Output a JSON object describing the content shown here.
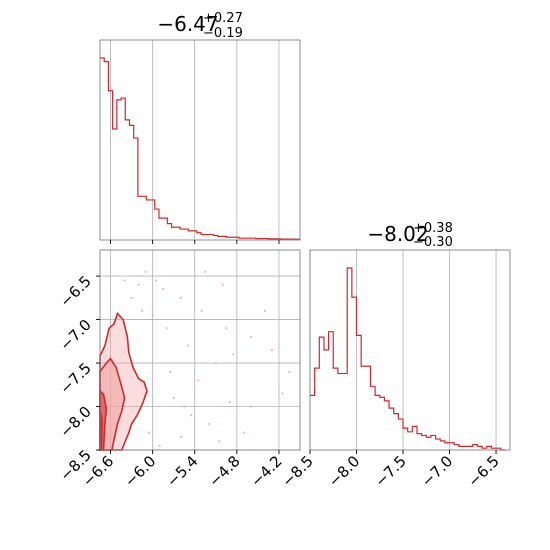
{
  "colors": {
    "line": "#d62728",
    "fill_dark": "#d62728",
    "fill_light": "#f0a0a0",
    "grid": "#b0b0b0",
    "frame": "#808080"
  },
  "chart_data": [
    {
      "type": "histogram",
      "panel": "top-left",
      "title": {
        "main": "−6.47",
        "sup": "+0.27",
        "sub": "−0.19"
      },
      "xlim": [
        -6.75,
        -3.9
      ],
      "grid": true,
      "bin_edges_start": -6.75,
      "bin_width": 0.06,
      "counts": [
        1.0,
        0.98,
        0.82,
        0.61,
        0.77,
        0.78,
        0.66,
        0.63,
        0.56,
        0.24,
        0.24,
        0.22,
        0.22,
        0.17,
        0.12,
        0.12,
        0.09,
        0.07,
        0.07,
        0.06,
        0.06,
        0.05,
        0.05,
        0.04,
        0.03,
        0.03,
        0.03,
        0.025,
        0.02,
        0.02,
        0.015,
        0.015,
        0.015,
        0.01,
        0.01,
        0.01,
        0.01,
        0.008,
        0.008,
        0.008,
        0.006,
        0.006,
        0.006,
        0.005,
        0.005,
        0.005,
        0.004,
        0.004
      ]
    },
    {
      "type": "contour-scatter",
      "panel": "bottom-left",
      "xlim": [
        -6.75,
        -3.9
      ],
      "ylim": [
        -8.5,
        -6.2
      ],
      "x_ticks": [
        "−6.6",
        "−6.0",
        "−5.4",
        "−4.8",
        "−4.2"
      ],
      "x_tick_values": [
        -6.6,
        -6.0,
        -5.4,
        -4.8,
        -4.2
      ],
      "y_ticks": [
        "−6.5",
        "−7.0",
        "−7.5",
        "−8.0",
        "−8.5"
      ],
      "y_tick_values": [
        -6.5,
        -7.0,
        -7.5,
        -8.0,
        -8.5
      ],
      "grid": true,
      "contour_levels": [
        0.118,
        0.393,
        0.675,
        0.865
      ],
      "outer_contour": [
        [
          -6.75,
          -8.5
        ],
        [
          -6.75,
          -7.42
        ],
        [
          -6.68,
          -7.3
        ],
        [
          -6.62,
          -7.1
        ],
        [
          -6.55,
          -7.05
        ],
        [
          -6.5,
          -6.93
        ],
        [
          -6.42,
          -7.0
        ],
        [
          -6.36,
          -7.2
        ],
        [
          -6.34,
          -7.38
        ],
        [
          -6.28,
          -7.55
        ],
        [
          -6.2,
          -7.68
        ],
        [
          -6.12,
          -7.72
        ],
        [
          -6.08,
          -7.82
        ],
        [
          -6.14,
          -7.96
        ],
        [
          -6.22,
          -8.1
        ],
        [
          -6.3,
          -8.2
        ],
        [
          -6.34,
          -8.3
        ],
        [
          -6.4,
          -8.42
        ],
        [
          -6.44,
          -8.5
        ]
      ],
      "mid_contour": [
        [
          -6.75,
          -8.5
        ],
        [
          -6.75,
          -7.6
        ],
        [
          -6.66,
          -7.5
        ],
        [
          -6.6,
          -7.45
        ],
        [
          -6.52,
          -7.55
        ],
        [
          -6.46,
          -7.72
        ],
        [
          -6.4,
          -7.9
        ],
        [
          -6.44,
          -8.05
        ],
        [
          -6.5,
          -8.2
        ],
        [
          -6.55,
          -8.38
        ],
        [
          -6.58,
          -8.5
        ]
      ],
      "inner_contour": [
        [
          -6.75,
          -8.5
        ],
        [
          -6.75,
          -7.82
        ],
        [
          -6.7,
          -7.86
        ],
        [
          -6.66,
          -8.02
        ],
        [
          -6.68,
          -8.2
        ],
        [
          -6.7,
          -8.5
        ]
      ],
      "core_contour": [
        [
          -6.75,
          -8.5
        ],
        [
          -6.75,
          -8.05
        ],
        [
          -6.72,
          -8.15
        ],
        [
          -6.73,
          -8.5
        ]
      ],
      "scatter": [
        [
          -6.1,
          -6.45
        ],
        [
          -5.95,
          -6.55
        ],
        [
          -5.85,
          -6.65
        ],
        [
          -6.2,
          -6.6
        ],
        [
          -5.6,
          -6.75
        ],
        [
          -5.3,
          -6.9
        ],
        [
          -4.95,
          -7.1
        ],
        [
          -4.6,
          -7.2
        ],
        [
          -4.3,
          -7.35
        ],
        [
          -4.05,
          -7.6
        ],
        [
          -5.1,
          -7.5
        ],
        [
          -5.5,
          -7.3
        ],
        [
          -5.8,
          -7.1
        ],
        [
          -6.0,
          -6.95
        ],
        [
          -5.7,
          -7.9
        ],
        [
          -5.45,
          -8.1
        ],
        [
          -5.2,
          -8.2
        ],
        [
          -4.9,
          -7.95
        ],
        [
          -4.6,
          -8.0
        ],
        [
          -6.05,
          -8.3
        ],
        [
          -5.9,
          -8.45
        ],
        [
          -5.6,
          -8.35
        ],
        [
          -6.3,
          -6.75
        ],
        [
          -6.4,
          -6.55
        ],
        [
          -5.0,
          -6.6
        ],
        [
          -4.4,
          -6.9
        ],
        [
          -4.15,
          -7.85
        ],
        [
          -4.7,
          -8.3
        ],
        [
          -5.35,
          -7.7
        ],
        [
          -5.25,
          -6.45
        ],
        [
          -6.15,
          -6.9
        ],
        [
          -5.75,
          -7.6
        ],
        [
          -5.55,
          -8.0
        ],
        [
          -4.85,
          -7.4
        ],
        [
          -5.05,
          -8.4
        ]
      ]
    },
    {
      "type": "histogram",
      "panel": "bottom-right",
      "title": {
        "main": "−8.02",
        "sup": "+0.38",
        "sub": "−0.30"
      },
      "xlim": [
        -8.5,
        -6.35
      ],
      "x_ticks": [
        "−8.5",
        "−8.0",
        "−7.5",
        "−7.0",
        "−6.5"
      ],
      "x_tick_values": [
        -8.5,
        -8.0,
        -7.5,
        -7.0,
        -6.5
      ],
      "grid": true,
      "bin_edges_start": -8.5,
      "bin_width": 0.05,
      "counts": [
        0.3,
        0.45,
        0.62,
        0.55,
        0.65,
        0.45,
        0.42,
        0.42,
        1.0,
        0.84,
        0.63,
        0.46,
        0.46,
        0.35,
        0.3,
        0.29,
        0.27,
        0.23,
        0.2,
        0.17,
        0.12,
        0.1,
        0.13,
        0.09,
        0.08,
        0.07,
        0.08,
        0.06,
        0.05,
        0.04,
        0.04,
        0.03,
        0.02,
        0.02,
        0.02,
        0.03,
        0.02,
        0.01,
        0.02,
        0.01,
        0.01,
        0.0
      ]
    }
  ]
}
